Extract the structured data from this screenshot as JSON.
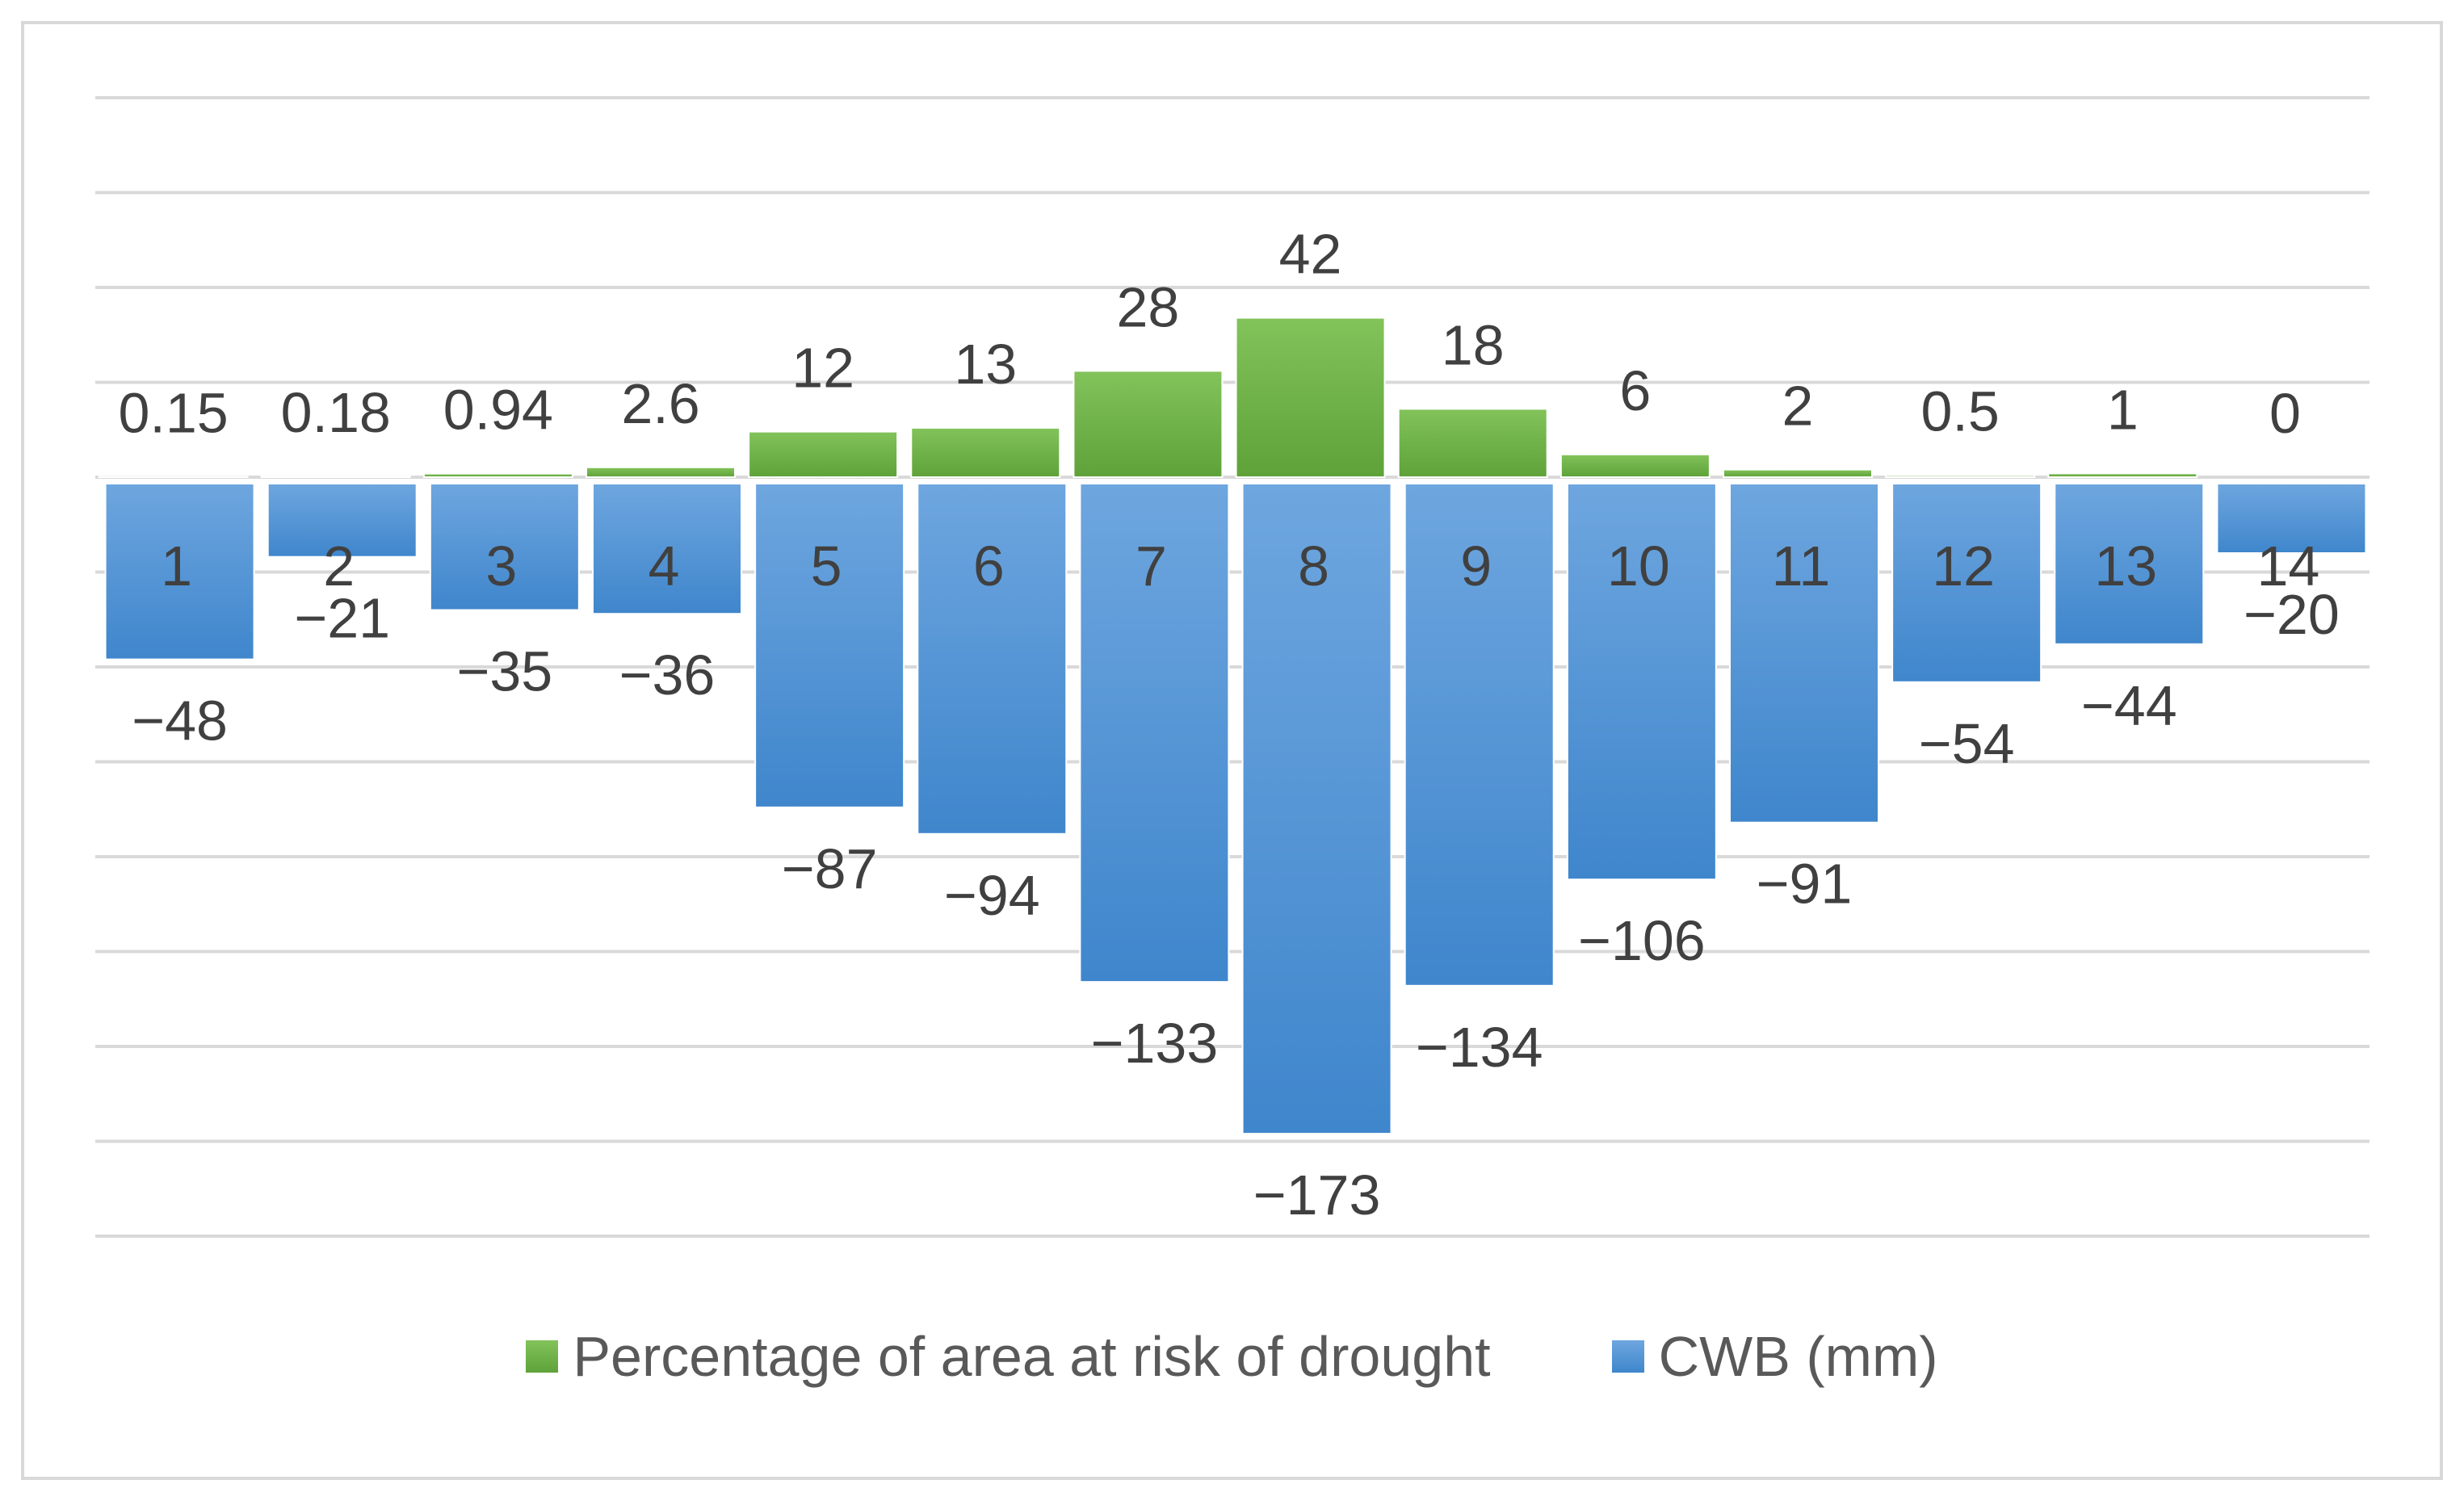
{
  "chart_data": {
    "type": "bar",
    "categories": [
      "1",
      "2",
      "3",
      "4",
      "5",
      "6",
      "7",
      "8",
      "9",
      "10",
      "11",
      "12",
      "13",
      "14"
    ],
    "series": [
      {
        "name": "Percentage of area at risk of drought",
        "color": "#70ad47",
        "values": [
          0.15,
          0.18,
          0.94,
          2.6,
          12,
          13,
          28,
          42,
          18,
          6,
          2,
          0.5,
          1,
          0
        ],
        "labels": [
          "0.15",
          "0.18",
          "0.94",
          "2.6",
          "12",
          "13",
          "28",
          "42",
          "18",
          "6",
          "2",
          "0.5",
          "1",
          "0"
        ]
      },
      {
        "name": "CWB (mm)",
        "color": "#5b9bd5",
        "values": [
          -48,
          -21,
          -35,
          -36,
          -87,
          -94,
          -133,
          -173,
          -134,
          -106,
          -91,
          -54,
          -44,
          -20
        ],
        "labels": [
          "−48",
          "−21",
          "−35",
          "−36",
          "−87",
          "−94",
          "−133",
          "−173",
          "−134",
          "−106",
          "−91",
          "−54",
          "−44",
          "−20"
        ]
      }
    ],
    "ylim": [
      -200,
      100
    ],
    "title": "",
    "xlabel": "",
    "ylabel": "",
    "grid": true,
    "legend": "bottom"
  }
}
